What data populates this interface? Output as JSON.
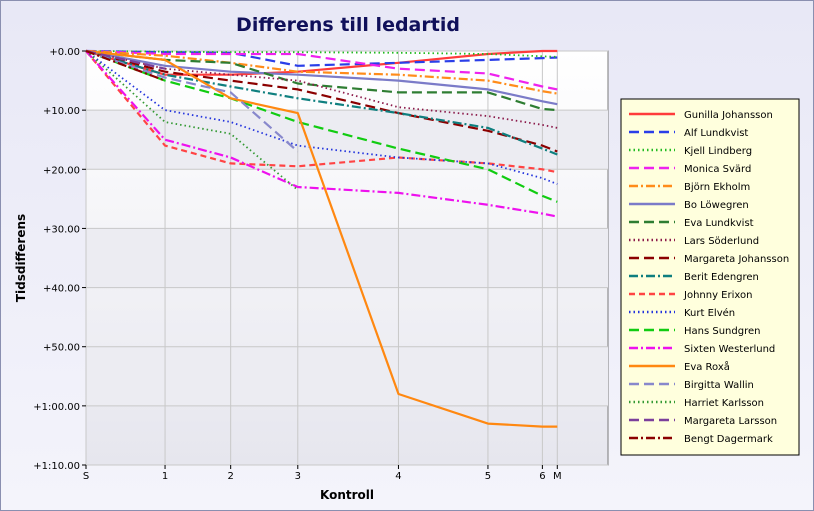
{
  "chart_data": {
    "type": "line",
    "title": "Differens till ledartid",
    "xlabel": "Kontroll",
    "ylabel": "Tidsdifferens",
    "x_ticks": [
      {
        "x": 0,
        "label": "S"
      },
      {
        "x": 1,
        "label": "1"
      },
      {
        "x": 2,
        "label": "2"
      },
      {
        "x": 3,
        "label": "3"
      },
      {
        "x": 4,
        "label": "4"
      },
      {
        "x": 5,
        "label": "5"
      },
      {
        "x": 6,
        "label": "6"
      },
      {
        "x": 7,
        "label": "M"
      }
    ],
    "y_ticks": [
      {
        "v": 0,
        "label": "+0.00"
      },
      {
        "v": 10,
        "label": "+10.00"
      },
      {
        "v": 20,
        "label": "+20.00"
      },
      {
        "v": 30,
        "label": "+30.00"
      },
      {
        "v": 40,
        "label": "+40.00"
      },
      {
        "v": 50,
        "label": "+50.00"
      },
      {
        "v": 60,
        "label": "+1:00.00"
      },
      {
        "v": 70,
        "label": "+1:10.00"
      }
    ],
    "ylim": [
      0,
      70
    ],
    "y_inverted": true,
    "grid": true,
    "legend_position": "right",
    "x_positions": [
      0,
      1.06,
      1.94,
      2.84,
      4.19,
      5.39,
      6.12,
      6.32
    ],
    "series": [
      {
        "name": "Gunilla Johansson",
        "color": "#ff3b3b",
        "dash": "solid",
        "values": [
          0,
          4.0,
          4.0,
          3.5,
          2.0,
          0.5,
          0.0,
          0.0
        ]
      },
      {
        "name": "Alf Lundkvist",
        "color": "#2a3ee8",
        "dash": "longdash",
        "values": [
          0,
          0.2,
          0.3,
          2.5,
          2.0,
          1.5,
          1.2,
          1.1
        ]
      },
      {
        "name": "Kjell Lindberg",
        "color": "#22bb22",
        "dash": "dot",
        "values": [
          0,
          0.1,
          0.2,
          0.2,
          0.3,
          0.5,
          0.9,
          1.0
        ]
      },
      {
        "name": "Monica Svärd",
        "color": "#ee22ee",
        "dash": "longdash",
        "values": [
          0,
          0.5,
          0.5,
          0.5,
          3.0,
          3.8,
          6.0,
          6.5
        ]
      },
      {
        "name": "Björn Ekholm",
        "color": "#ff8c1a",
        "dash": "dashdot",
        "values": [
          0,
          0.8,
          2.0,
          3.5,
          4.0,
          5.0,
          6.8,
          7.2
        ]
      },
      {
        "name": "Bo Löwegren",
        "color": "#7b7bc8",
        "dash": "solid",
        "values": [
          0,
          2.5,
          3.5,
          4.0,
          5.0,
          6.5,
          8.5,
          9.0
        ]
      },
      {
        "name": "Eva Lundkvist",
        "color": "#2e7d32",
        "dash": "longdash",
        "values": [
          0,
          1.5,
          2.0,
          5.5,
          7.0,
          7.0,
          9.8,
          10.0
        ]
      },
      {
        "name": "Lars Söderlund",
        "color": "#8b1a4a",
        "dash": "dot",
        "values": [
          0,
          3.0,
          4.0,
          5.0,
          9.5,
          11.0,
          12.5,
          13.0
        ]
      },
      {
        "name": "Margareta Johansson",
        "color": "#8b0000",
        "dash": "longdash",
        "values": [
          0,
          3.5,
          5.0,
          6.5,
          10.5,
          13.5,
          16.0,
          17.0
        ]
      },
      {
        "name": "Berit Edengren",
        "color": "#0f7f7f",
        "dash": "dashdot",
        "values": [
          0,
          4.0,
          6.0,
          8.0,
          10.5,
          13.0,
          16.5,
          17.5
        ]
      },
      {
        "name": "Johnny Erixon",
        "color": "#ff4444",
        "dash": "shortdash",
        "values": [
          0,
          16.0,
          19.0,
          19.5,
          18.0,
          19.0,
          20.0,
          20.5
        ]
      },
      {
        "name": "Kurt Elvén",
        "color": "#2233dd",
        "dash": "dot",
        "values": [
          0,
          10.0,
          12.0,
          16.0,
          18.0,
          19.0,
          21.5,
          22.5
        ]
      },
      {
        "name": "Hans Sundgren",
        "color": "#11cc11",
        "dash": "longdash",
        "values": [
          0,
          5.0,
          8.0,
          12.0,
          16.5,
          20.0,
          24.5,
          25.5
        ]
      },
      {
        "name": "Sixten Westerlund",
        "color": "#ee11ee",
        "dash": "dashdot",
        "values": [
          0,
          15.0,
          18.0,
          23.0,
          24.0,
          26.0,
          27.5,
          28.0
        ]
      },
      {
        "name": "Eva Roxå",
        "color": "#ff8811",
        "dash": "solid",
        "values": [
          0,
          1.5,
          8.0,
          10.5,
          58.0,
          63.0,
          63.5,
          63.5
        ]
      },
      {
        "name": "Birgitta Wallin",
        "color": "#8888cc",
        "dash": "longdash",
        "values": [
          0,
          4.5,
          7.0,
          17.0,
          null,
          null,
          null,
          null
        ]
      },
      {
        "name": "Harriet Karlsson",
        "color": "#339933",
        "dash": "dot",
        "values": [
          0,
          12.0,
          14.0,
          23.5,
          null,
          null,
          null,
          null
        ]
      },
      {
        "name": "Margareta Larsson",
        "color": "#7b3f9b",
        "dash": "longdash",
        "values": [
          0,
          3.0,
          null,
          null,
          null,
          null,
          null,
          null
        ]
      },
      {
        "name": "Bengt Dagermark",
        "color": "#8b0000",
        "dash": "dashdot",
        "values": [
          0,
          5.0,
          null,
          null,
          null,
          null,
          null,
          null
        ]
      }
    ]
  }
}
